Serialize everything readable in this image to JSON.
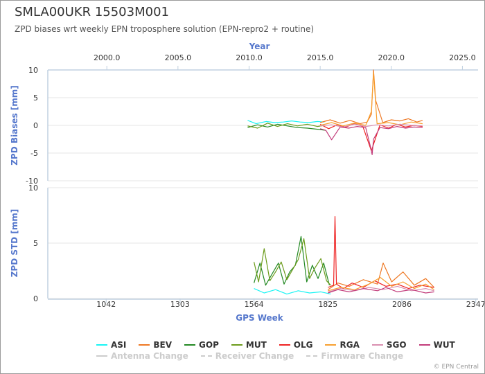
{
  "title": "SMLA00UKR 15503M001",
  "subtitle": "ZPD biases wrt weekly EPN troposphere solution (EPN-repro2 + routine)",
  "credit": "© EPN Central",
  "legend": {
    "series": [
      {
        "label": "ASI",
        "color": "#17f4f4"
      },
      {
        "label": "BEV",
        "color": "#ee7722"
      },
      {
        "label": "GOP",
        "color": "#228822"
      },
      {
        "label": "MUT",
        "color": "#6b9b1a"
      },
      {
        "label": "OLG",
        "color": "#ee2222"
      },
      {
        "label": "RGA",
        "color": "#f7a030"
      },
      {
        "label": "SGO",
        "color": "#d98fb0"
      },
      {
        "label": "WUT",
        "color": "#c23b7a"
      }
    ],
    "changes": [
      {
        "label": "Antenna Change",
        "style": "solid"
      },
      {
        "label": "Receiver Change",
        "style": "dashed"
      },
      {
        "label": "Firmware Change",
        "style": "dashed"
      }
    ]
  },
  "chart_data": [
    {
      "type": "line",
      "title": "",
      "xlabel": "Year",
      "ylabel": "ZPD Biases [mm]",
      "x_ticks": [
        "2000.0",
        "2005.0",
        "2010.0",
        "2015.0",
        "2020.0",
        "2025.0"
      ],
      "y_ticks": [
        "10",
        "5",
        "0",
        "-5",
        "-10"
      ],
      "xlim": [
        1995.85,
        2026.1
      ],
      "ylim": [
        -10,
        10
      ],
      "grid": true,
      "series": [
        {
          "name": "ASI",
          "x": [
            2009.9,
            2010.5,
            2011.2,
            2011.8,
            2012.4,
            2013.0,
            2013.6,
            2014.2,
            2014.8,
            2015.3
          ],
          "y": [
            0.9,
            0.3,
            0.7,
            0.5,
            0.6,
            0.8,
            0.6,
            0.5,
            0.7,
            0.6
          ]
        },
        {
          "name": "BEV",
          "x": [
            2015.0,
            2015.7,
            2016.4,
            2017.1,
            2017.8,
            2018.3,
            2018.6,
            2018.75,
            2018.9,
            2019.4,
            2020.0,
            2020.6,
            2021.2,
            2021.8,
            2022.2
          ],
          "y": [
            0.5,
            1.0,
            0.4,
            0.9,
            0.3,
            0.6,
            2.0,
            10.0,
            4.5,
            0.5,
            1.0,
            0.8,
            1.2,
            0.6,
            0.9
          ]
        },
        {
          "name": "GOP",
          "x": [
            2009.9,
            2010.6,
            2011.3,
            2012.0,
            2012.7,
            2013.4,
            2014.1,
            2014.8,
            2015.4
          ],
          "y": [
            -0.4,
            0.1,
            -0.3,
            0.2,
            -0.1,
            -0.4,
            -0.5,
            -0.7,
            -0.9
          ]
        },
        {
          "name": "MUT",
          "x": [
            2009.9,
            2010.6,
            2011.3,
            2012.0,
            2012.7,
            2013.4,
            2014.1,
            2014.8,
            2015.3
          ],
          "y": [
            -0.1,
            -0.5,
            0.4,
            -0.2,
            0.3,
            -0.1,
            0.2,
            -0.2,
            0.0
          ]
        },
        {
          "name": "OLG",
          "x": [
            2015.0,
            2015.6,
            2016.2,
            2016.8,
            2017.4,
            2018.0,
            2018.6,
            2019.2,
            2019.8,
            2020.4,
            2021.0,
            2021.6,
            2022.2
          ],
          "y": [
            0.2,
            -0.6,
            0.1,
            -0.3,
            0.3,
            -0.2,
            -4.6,
            0.1,
            -0.5,
            0.2,
            -0.3,
            0.0,
            -0.2
          ]
        },
        {
          "name": "RGA",
          "x": [
            2015.0,
            2015.8,
            2016.6,
            2017.4,
            2018.2,
            2018.6,
            2018.75,
            2019.0,
            2019.8,
            2020.6,
            2021.4,
            2022.2
          ],
          "y": [
            0.0,
            0.5,
            -0.1,
            0.4,
            0.0,
            2.5,
            9.5,
            0.3,
            0.5,
            0.1,
            0.6,
            0.3
          ]
        },
        {
          "name": "SGO",
          "x": [
            2015.0,
            2015.8,
            2016.6,
            2017.4,
            2018.2,
            2019.0,
            2019.8,
            2020.6,
            2021.4,
            2022.2
          ],
          "y": [
            -0.1,
            0.1,
            -0.3,
            0.2,
            -0.2,
            0.1,
            -0.1,
            0.2,
            0.0,
            -0.1
          ]
        },
        {
          "name": "WUT",
          "x": [
            2015.0,
            2015.4,
            2015.8,
            2016.4,
            2017.0,
            2017.6,
            2018.2,
            2018.55,
            2018.65,
            2018.75,
            2019.2,
            2019.8,
            2020.4,
            2021.0,
            2021.6,
            2022.2
          ],
          "y": [
            -0.6,
            -0.9,
            -2.6,
            -0.3,
            -0.5,
            -0.2,
            -0.4,
            -4.0,
            -5.3,
            -2.5,
            -0.4,
            -0.6,
            -0.2,
            -0.5,
            -0.3,
            -0.4
          ]
        }
      ]
    },
    {
      "type": "line",
      "title": "",
      "xlabel": "GPS Week",
      "ylabel": "ZPD STD [mm]",
      "x_ticks": [
        "1042",
        "1303",
        "1564",
        "1825",
        "2086",
        "2347"
      ],
      "y_ticks": [
        "10",
        "5",
        "0"
      ],
      "xlim": [
        836,
        2355
      ],
      "ylim": [
        0,
        10
      ],
      "grid": true,
      "series": [
        {
          "name": "ASI",
          "x": [
            1564,
            1600,
            1640,
            1680,
            1720,
            1760,
            1800,
            1835
          ],
          "y": [
            0.9,
            0.5,
            0.8,
            0.4,
            0.7,
            0.5,
            0.6,
            0.4
          ]
        },
        {
          "name": "BEV",
          "x": [
            1825,
            1860,
            1900,
            1950,
            2000,
            2020,
            2050,
            2090,
            2130,
            2170,
            2200
          ],
          "y": [
            0.8,
            1.4,
            1.1,
            1.7,
            1.3,
            3.2,
            1.5,
            2.4,
            1.2,
            1.8,
            1.0
          ]
        },
        {
          "name": "GOP",
          "x": [
            1564,
            1585,
            1605,
            1625,
            1650,
            1670,
            1690,
            1710,
            1730,
            1750,
            1770,
            1790,
            1810,
            1830
          ],
          "y": [
            1.4,
            3.2,
            1.2,
            2.1,
            3.2,
            1.3,
            2.4,
            3.0,
            5.6,
            1.5,
            3.0,
            1.8,
            3.2,
            1.2
          ]
        },
        {
          "name": "MUT",
          "x": [
            1564,
            1580,
            1600,
            1620,
            1640,
            1660,
            1680,
            1700,
            1720,
            1740,
            1760,
            1780,
            1800,
            1820,
            1835
          ],
          "y": [
            3.3,
            1.5,
            4.5,
            1.6,
            2.4,
            3.3,
            1.7,
            2.6,
            3.5,
            5.4,
            1.8,
            2.8,
            3.6,
            1.6,
            1.2
          ]
        },
        {
          "name": "OLG",
          "x": [
            1825,
            1845,
            1850,
            1855,
            1880,
            1910,
            1950,
            1990,
            2030,
            2070,
            2110,
            2150,
            2200
          ],
          "y": [
            1.0,
            1.2,
            7.4,
            1.3,
            0.9,
            1.4,
            1.0,
            1.6,
            1.1,
            1.3,
            0.9,
            1.2,
            1.0
          ]
        },
        {
          "name": "RGA",
          "x": [
            1825,
            1870,
            1920,
            1970,
            2010,
            2050,
            2090,
            2130,
            2170,
            2200
          ],
          "y": [
            0.7,
            1.0,
            0.8,
            1.3,
            1.9,
            1.1,
            1.5,
            0.9,
            1.3,
            0.8
          ]
        },
        {
          "name": "SGO",
          "x": [
            1825,
            1870,
            1920,
            1970,
            2020,
            2070,
            2120,
            2170,
            2200
          ],
          "y": [
            0.6,
            0.9,
            0.7,
            1.0,
            0.8,
            1.1,
            0.7,
            0.9,
            0.7
          ]
        },
        {
          "name": "WUT",
          "x": [
            1825,
            1860,
            1900,
            1950,
            2000,
            2030,
            2070,
            2120,
            2170,
            2200
          ],
          "y": [
            0.5,
            0.8,
            0.6,
            0.9,
            0.7,
            1.0,
            0.6,
            0.8,
            0.5,
            0.6
          ]
        }
      ]
    }
  ]
}
